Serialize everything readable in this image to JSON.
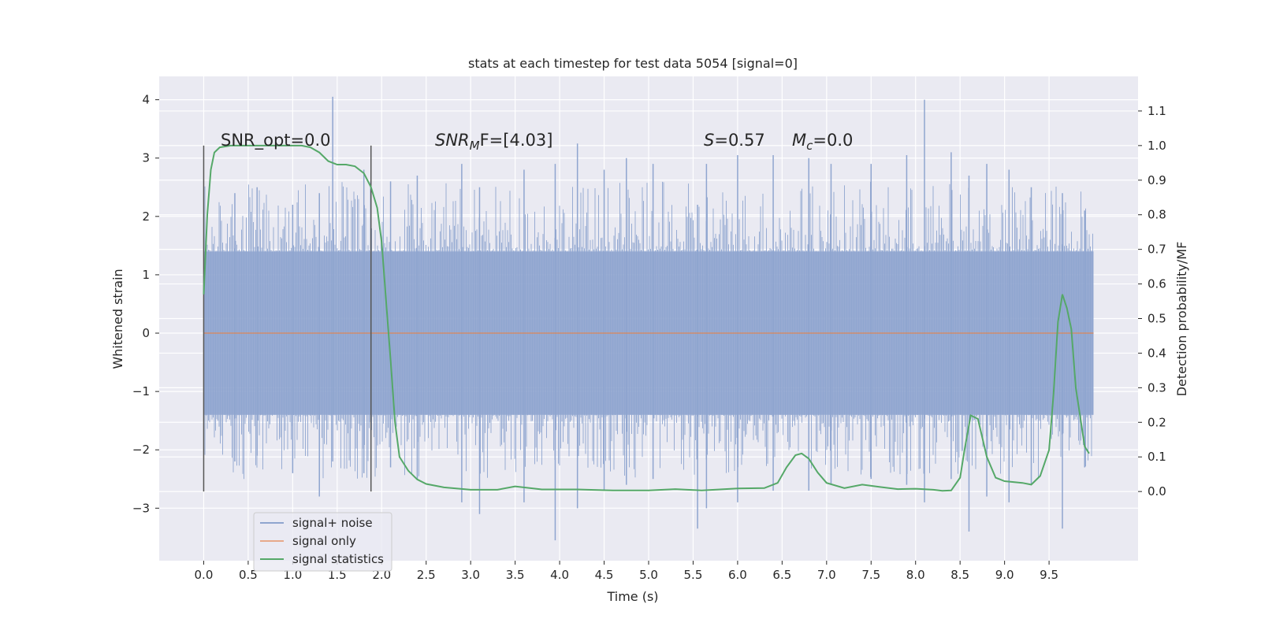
{
  "chart_data": {
    "type": "line",
    "title": "stats at each timestep for test data 5054 [signal=0]",
    "xlabel": "Time (s)",
    "ylabel_left": "Whitened strain",
    "ylabel_right": "Detection probability/MF",
    "xlim": [
      -0.5,
      10.5
    ],
    "ylim_left": [
      -3.9,
      4.4
    ],
    "ylim_right": [
      -0.2,
      1.2
    ],
    "x_ticks": [
      "0.0",
      "0.5",
      "1.0",
      "1.5",
      "2.0",
      "2.5",
      "3.0",
      "3.5",
      "4.0",
      "4.5",
      "5.0",
      "5.5",
      "6.0",
      "6.5",
      "7.0",
      "7.5",
      "8.0",
      "8.5",
      "9.0",
      "9.5"
    ],
    "y_ticks_left": [
      "−3",
      "−2",
      "−1",
      "0",
      "1",
      "2",
      "3",
      "4"
    ],
    "y_ticks_right": [
      "0.0",
      "0.1",
      "0.2",
      "0.3",
      "0.4",
      "0.5",
      "0.6",
      "0.7",
      "0.8",
      "0.9",
      "1.0",
      "1.1"
    ],
    "annotations": {
      "snr_opt": "SNR_opt=0.0",
      "snr_mf_prefix": "SNR",
      "snr_mf_sub": "M",
      "snr_mf_suffix": "F=[4.03]",
      "s_var": "S",
      "s_value": "=0.57",
      "mc_var": "M",
      "mc_sub": "c",
      "mc_value": "=0.0"
    },
    "vertical_markers_x": [
      0.0,
      1.88
    ],
    "series": [
      {
        "name": "signal+ noise",
        "axis": "left",
        "color": "#8fa5cf",
        "x_range": [
          0.0,
          10.0
        ],
        "band": [
          -1.4,
          1.4
        ],
        "spikes": [
          [
            0.35,
            2.4,
            -2.2
          ],
          [
            0.6,
            2.5,
            -2.1
          ],
          [
            1.0,
            2.2,
            -2.4
          ],
          [
            1.3,
            2.4,
            -2.8
          ],
          [
            1.45,
            4.05,
            -2.2
          ],
          [
            1.8,
            2.8,
            -2.4
          ],
          [
            2.1,
            2.6,
            -2.3
          ],
          [
            2.4,
            2.7,
            -2.5
          ],
          [
            2.9,
            2.9,
            -2.9
          ],
          [
            3.1,
            2.5,
            -3.1
          ],
          [
            3.6,
            2.8,
            -2.9
          ],
          [
            3.95,
            2.9,
            -3.55
          ],
          [
            4.2,
            3.25,
            -3.0
          ],
          [
            4.5,
            2.8,
            -2.7
          ],
          [
            4.75,
            3.0,
            -2.6
          ],
          [
            5.05,
            2.9,
            -2.5
          ],
          [
            5.55,
            2.2,
            -3.35
          ],
          [
            5.65,
            2.9,
            -3.0
          ],
          [
            6.0,
            3.05,
            -2.9
          ],
          [
            6.4,
            3.05,
            -2.7
          ],
          [
            6.8,
            3.0,
            -2.7
          ],
          [
            7.05,
            2.9,
            -2.6
          ],
          [
            7.5,
            2.9,
            -2.5
          ],
          [
            7.9,
            3.05,
            -2.6
          ],
          [
            8.1,
            4.0,
            -2.9
          ],
          [
            8.4,
            3.1,
            -2.5
          ],
          [
            8.6,
            2.7,
            -3.4
          ],
          [
            8.8,
            2.9,
            -2.8
          ],
          [
            9.05,
            2.8,
            -2.9
          ],
          [
            9.3,
            2.5,
            -2.6
          ],
          [
            9.65,
            2.4,
            -3.35
          ],
          [
            9.9,
            2.1,
            -2.3
          ]
        ]
      },
      {
        "name": "signal only",
        "axis": "left",
        "color": "#dd8452",
        "x": [
          0.0,
          10.0
        ],
        "y": [
          0.0,
          0.0
        ]
      },
      {
        "name": "signal statistics",
        "axis": "right",
        "color": "#55a868",
        "x": [
          0.0,
          0.04,
          0.08,
          0.12,
          0.18,
          0.3,
          0.5,
          0.8,
          1.1,
          1.2,
          1.3,
          1.4,
          1.5,
          1.6,
          1.7,
          1.8,
          1.88,
          1.95,
          2.0,
          2.05,
          2.1,
          2.15,
          2.2,
          2.3,
          2.4,
          2.5,
          2.7,
          3.0,
          3.3,
          3.5,
          3.8,
          4.2,
          4.6,
          5.0,
          5.3,
          5.6,
          5.8,
          6.0,
          6.3,
          6.45,
          6.55,
          6.65,
          6.72,
          6.8,
          6.9,
          7.0,
          7.2,
          7.4,
          7.6,
          7.8,
          8.0,
          8.2,
          8.3,
          8.4,
          8.5,
          8.55,
          8.62,
          8.7,
          8.8,
          8.9,
          9.0,
          9.2,
          9.3,
          9.4,
          9.5,
          9.55,
          9.6,
          9.65,
          9.7,
          9.75,
          9.8,
          9.9,
          9.95
        ],
        "y": [
          0.57,
          0.8,
          0.93,
          0.98,
          0.995,
          1.0,
          1.0,
          1.0,
          1.0,
          0.995,
          0.98,
          0.955,
          0.945,
          0.945,
          0.94,
          0.92,
          0.88,
          0.82,
          0.72,
          0.55,
          0.38,
          0.2,
          0.1,
          0.06,
          0.035,
          0.022,
          0.012,
          0.005,
          0.005,
          0.015,
          0.006,
          0.006,
          0.003,
          0.003,
          0.007,
          0.003,
          0.006,
          0.009,
          0.01,
          0.025,
          0.07,
          0.105,
          0.11,
          0.095,
          0.055,
          0.025,
          0.01,
          0.02,
          0.013,
          0.007,
          0.008,
          0.005,
          0.002,
          0.003,
          0.04,
          0.12,
          0.22,
          0.21,
          0.1,
          0.04,
          0.03,
          0.025,
          0.02,
          0.045,
          0.12,
          0.28,
          0.49,
          0.57,
          0.53,
          0.47,
          0.3,
          0.13,
          0.11
        ]
      }
    ],
    "legend": {
      "placement": "lower-left",
      "entries": [
        "signal+ noise",
        "signal only",
        "signal statistics"
      ]
    },
    "colors": {
      "plot_background": "#eaeaf2",
      "grid": "#ffffff",
      "marker_line": "#555555"
    },
    "grid": true
  }
}
